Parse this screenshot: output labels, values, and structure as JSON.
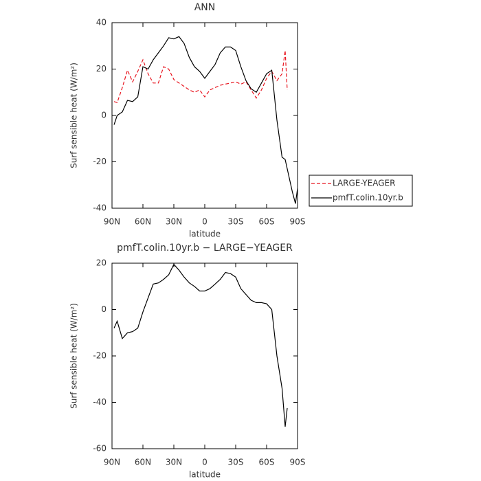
{
  "chart_data": [
    {
      "type": "line",
      "title": "ANN",
      "xlabel": "latitude",
      "ylabel": "Surf sensible heat (W/m²)",
      "x": [
        88,
        85,
        80,
        75,
        70,
        65,
        60,
        55,
        50,
        45,
        40,
        35,
        30,
        25,
        20,
        15,
        10,
        5,
        0,
        -5,
        -10,
        -15,
        -20,
        -25,
        -30,
        -35,
        -40,
        -45,
        -50,
        -55,
        -60,
        -65,
        -70,
        -75,
        -78,
        -80,
        -85,
        -88,
        -90
      ],
      "series": [
        {
          "name": "LARGE-YEAGER",
          "color": "#e8141e",
          "style": "dashed",
          "values": [
            6,
            5.5,
            12,
            19.5,
            14.5,
            19,
            24,
            18,
            14,
            14,
            21,
            20,
            15.5,
            14,
            12.5,
            11,
            10,
            11,
            8,
            11,
            12,
            13,
            13.5,
            14,
            14.5,
            13.5,
            14.5,
            11,
            7.5,
            11,
            16,
            19,
            15,
            18,
            28,
            11,
            null,
            null,
            null
          ]
        },
        {
          "name": "pmfT.colin.10yr.b",
          "color": "#000000",
          "style": "solid",
          "values": [
            -4,
            0,
            1.5,
            6.5,
            6,
            8,
            21,
            20,
            24,
            27,
            30,
            33.5,
            33,
            34,
            31,
            25,
            21,
            19,
            16,
            19,
            22,
            27,
            29.5,
            29.5,
            28,
            21,
            15,
            11.5,
            10,
            14,
            18,
            19.5,
            -2,
            -18,
            -19,
            -23,
            -33,
            -38,
            -31.5
          ]
        }
      ],
      "xlim": [
        90,
        -90
      ],
      "xticks": [
        {
          "value": 90,
          "label": "90N"
        },
        {
          "value": 60,
          "label": "60N"
        },
        {
          "value": 30,
          "label": "30N"
        },
        0,
        {
          "value": -30,
          "label": "30S"
        },
        {
          "value": -60,
          "label": "60S"
        },
        {
          "value": -90,
          "label": "90S"
        }
      ],
      "ylim": [
        -40,
        40
      ],
      "yticks": [
        -40,
        -20,
        0,
        20,
        40
      ],
      "legend": "right"
    },
    {
      "type": "line",
      "title": "pmfT.colin.10yr.b − LARGE−YEAGER",
      "xlabel": "latitude",
      "ylabel": "Surf sensible heat (W/m²)",
      "x": [
        88,
        85,
        80,
        75,
        70,
        65,
        60,
        55,
        50,
        45,
        40,
        35,
        30,
        25,
        20,
        15,
        10,
        5,
        0,
        -5,
        -10,
        -15,
        -20,
        -25,
        -30,
        -35,
        -40,
        -45,
        -50,
        -55,
        -60,
        -65,
        -70,
        -75,
        -78,
        -80
      ],
      "series": [
        {
          "color": "#000000",
          "style": "solid",
          "values": [
            -8,
            -5,
            -12.5,
            -10,
            -9.5,
            -8,
            -1,
            5,
            11,
            11.5,
            13,
            15,
            19.5,
            17,
            14,
            11.5,
            10,
            8,
            8,
            9,
            11,
            13,
            16,
            15.5,
            14,
            9,
            6.5,
            4,
            3,
            3,
            2.5,
            0,
            -20,
            -34,
            -50.5,
            -42.5
          ]
        }
      ],
      "xlim": [
        90,
        -90
      ],
      "xticks": [
        {
          "value": 90,
          "label": "90N"
        },
        {
          "value": 60,
          "label": "60N"
        },
        {
          "value": 30,
          "label": "30N"
        },
        0,
        {
          "value": -30,
          "label": "30S"
        },
        {
          "value": -60,
          "label": "60S"
        },
        {
          "value": -90,
          "label": "90S"
        }
      ],
      "ylim": [
        -60,
        20
      ],
      "yticks": [
        -60,
        -40,
        -20,
        0,
        20
      ]
    }
  ]
}
